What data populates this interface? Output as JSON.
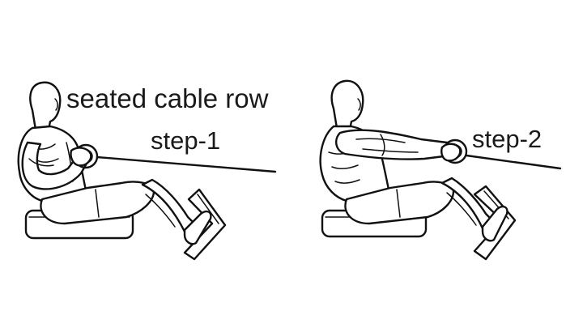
{
  "diagram": {
    "title": "seated cable row",
    "steps": [
      {
        "label": "step-1"
      },
      {
        "label": "step-2"
      }
    ]
  }
}
